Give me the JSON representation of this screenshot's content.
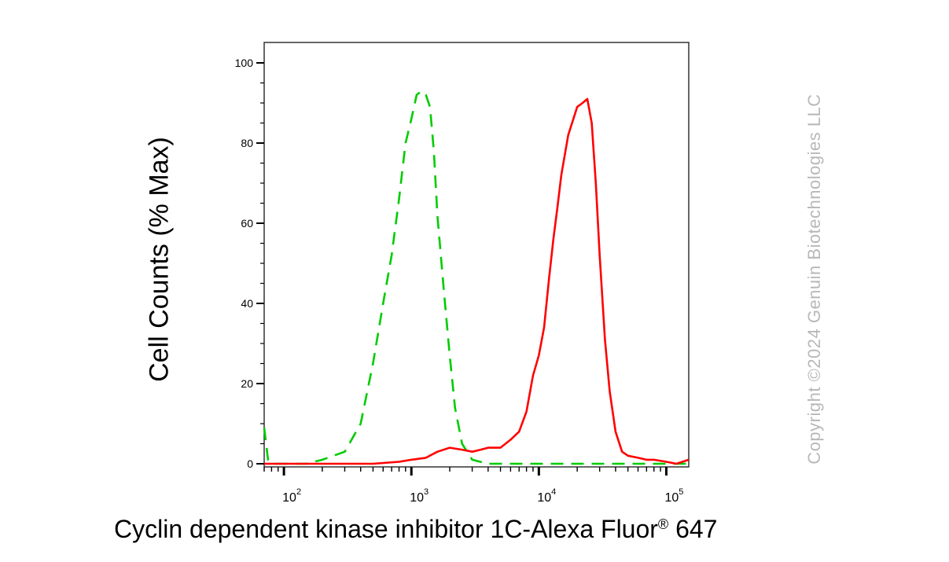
{
  "chart_data": {
    "type": "line",
    "ylabel": "Cell Counts (% Max)",
    "xlabel_main": "Cyclin dependent kinase inhibitor 1C-Alexa Fluor",
    "xlabel_sup": "®",
    "xlabel_tail": " 647",
    "x_scale": "log",
    "xlim": [
      70,
      150000
    ],
    "ylim": [
      0,
      100
    ],
    "y_ticks": [
      0,
      20,
      40,
      60,
      80,
      100
    ],
    "y_tick_labels": [
      "0",
      "20",
      "40",
      "60",
      "80",
      "100"
    ],
    "x_ticks": [
      100,
      1000,
      10000,
      100000
    ],
    "x_tick_base": "10",
    "x_tick_exps": [
      "2",
      "3",
      "4",
      "5"
    ],
    "grid": false,
    "series": [
      {
        "color": "#00cc00",
        "dash": "dashed",
        "x": [
          70,
          75,
          80,
          100,
          150,
          200,
          300,
          400,
          500,
          600,
          700,
          800,
          900,
          1000,
          1100,
          1200,
          1300,
          1400,
          1500,
          1600,
          1800,
          2000,
          2200,
          2500,
          3000,
          4000,
          10000,
          100000,
          150000
        ],
        "y": [
          9,
          1,
          0,
          0,
          0,
          1,
          3,
          10,
          25,
          40,
          52,
          66,
          80,
          86,
          92,
          93,
          92,
          89,
          78,
          62,
          43,
          27,
          14,
          5,
          1,
          0,
          0,
          0,
          0
        ]
      },
      {
        "color": "#ff0000",
        "dash": "solid",
        "x": [
          70,
          200,
          500,
          800,
          1000,
          1300,
          1600,
          2000,
          2500,
          3000,
          3500,
          4000,
          5000,
          6000,
          7000,
          8000,
          9000,
          10000,
          11000,
          12000,
          13000,
          14000,
          15000,
          17000,
          20000,
          22000,
          24000,
          26000,
          28000,
          30000,
          33000,
          36000,
          40000,
          45000,
          50000,
          60000,
          70000,
          80000,
          100000,
          120000,
          150000
        ],
        "y": [
          0,
          0,
          0,
          0.5,
          1,
          1.5,
          3,
          4,
          3.5,
          3,
          3.5,
          4,
          4,
          6,
          8,
          13,
          22,
          27,
          34,
          46,
          56,
          64,
          72,
          82,
          89,
          90,
          91,
          85,
          70,
          52,
          31,
          18,
          8,
          3,
          2,
          1.5,
          1,
          1,
          0.5,
          0,
          1
        ]
      }
    ]
  },
  "watermark": "Copyright ©2024 Genuin Biotechnologies LLC"
}
